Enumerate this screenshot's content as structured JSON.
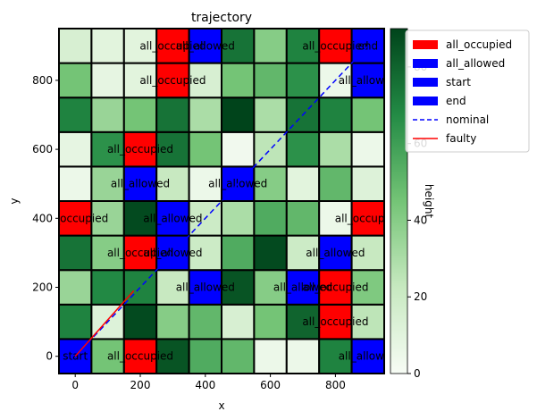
{
  "chart_data": {
    "type": "heatmap",
    "title": "trajectory",
    "xlabel": "x",
    "ylabel": "y",
    "colorbar_label": "height",
    "xlim": [
      -50,
      950
    ],
    "ylim": [
      -50,
      950
    ],
    "cell_size": 100,
    "x_ticks": [
      0,
      200,
      400,
      600,
      800
    ],
    "y_ticks": [
      0,
      200,
      400,
      600,
      800
    ],
    "colorbar_ticks": [
      0,
      20,
      40,
      60,
      80
    ],
    "colorbar_range": [
      0,
      90
    ],
    "grid": false,
    "legend_position": "upper right, outside plot",
    "colormap": "Greens",
    "heights": [
      [
        62,
        45,
        10,
        85,
        55,
        50,
        5,
        5,
        70,
        20
      ],
      [
        70,
        12,
        88,
        40,
        50,
        15,
        45,
        80,
        10,
        25
      ],
      [
        35,
        68,
        70,
        22,
        60,
        85,
        40,
        40,
        50,
        42
      ],
      [
        75,
        40,
        60,
        55,
        20,
        55,
        88,
        20,
        15,
        22
      ],
      [
        12,
        35,
        88,
        60,
        20,
        30,
        55,
        50,
        5,
        12
      ],
      [
        5,
        35,
        20,
        22,
        5,
        20,
        40,
        10,
        50,
        12
      ],
      [
        8,
        65,
        50,
        75,
        45,
        3,
        25,
        65,
        30,
        5
      ],
      [
        70,
        35,
        45,
        75,
        30,
        90,
        30,
        75,
        70,
        45
      ],
      [
        45,
        8,
        10,
        20,
        15,
        45,
        50,
        65,
        5,
        80
      ],
      [
        15,
        10,
        10,
        35,
        20,
        75,
        40,
        70,
        10,
        20
      ]
    ],
    "special_cells": [
      {
        "row": 0,
        "col": 0,
        "kind": "start",
        "label": "start"
      },
      {
        "row": 0,
        "col": 2,
        "kind": "all_occupied",
        "label": "all_occupied"
      },
      {
        "row": 0,
        "col": 9,
        "kind": "all_allowed",
        "label": "all_allowed"
      },
      {
        "row": 1,
        "col": 8,
        "kind": "all_occupied",
        "label": "all_occupied"
      },
      {
        "row": 2,
        "col": 4,
        "kind": "all_allowed",
        "label": "all_allowed"
      },
      {
        "row": 2,
        "col": 7,
        "kind": "all_allowed",
        "label": "all_allowed"
      },
      {
        "row": 2,
        "col": 8,
        "kind": "all_occupied",
        "label": "all_occupied"
      },
      {
        "row": 3,
        "col": 2,
        "kind": "all_occupied",
        "label": "all_occupied"
      },
      {
        "row": 3,
        "col": 3,
        "kind": "all_allowed",
        "label": "all_allowed"
      },
      {
        "row": 3,
        "col": 8,
        "kind": "all_allowed",
        "label": "all_allowed"
      },
      {
        "row": 4,
        "col": 0,
        "kind": "all_occupied",
        "label": "all_occupied"
      },
      {
        "row": 4,
        "col": 3,
        "kind": "all_allowed",
        "label": "all_allowed"
      },
      {
        "row": 4,
        "col": 9,
        "kind": "all_occupied",
        "label": "all_occupied"
      },
      {
        "row": 5,
        "col": 2,
        "kind": "all_allowed",
        "label": "all_allowed"
      },
      {
        "row": 5,
        "col": 5,
        "kind": "all_allowed",
        "label": "all_allowed"
      },
      {
        "row": 6,
        "col": 2,
        "kind": "all_occupied",
        "label": "all_occupied"
      },
      {
        "row": 8,
        "col": 3,
        "kind": "all_occupied",
        "label": "all_occupied"
      },
      {
        "row": 8,
        "col": 9,
        "kind": "all_allowed",
        "label": "all_allowed"
      },
      {
        "row": 9,
        "col": 3,
        "kind": "all_occupied",
        "label": "all_occupied"
      },
      {
        "row": 9,
        "col": 4,
        "kind": "all_allowed",
        "label": "all_allowed"
      },
      {
        "row": 9,
        "col": 8,
        "kind": "all_occupied",
        "label": "all_occupied"
      },
      {
        "row": 9,
        "col": 9,
        "kind": "end",
        "label": "end"
      }
    ],
    "special_colors": {
      "all_occupied": "#ff0000",
      "all_allowed": "#0000ff",
      "start": "#0000ff",
      "end": "#0000ff"
    },
    "lines": [
      {
        "name": "nominal",
        "color": "#0000ff",
        "style": "dashed",
        "points": [
          [
            0,
            0
          ],
          [
            900,
            900
          ]
        ]
      },
      {
        "name": "faulty",
        "color": "#ff0000",
        "style": "solid",
        "points": [
          [
            0,
            0
          ],
          [
            180,
            190
          ]
        ]
      }
    ],
    "legend": [
      {
        "label": "all_occupied",
        "kind": "patch",
        "color": "#ff0000"
      },
      {
        "label": "all_allowed",
        "kind": "patch",
        "color": "#0000ff"
      },
      {
        "label": "start",
        "kind": "patch",
        "color": "#0000ff"
      },
      {
        "label": "end",
        "kind": "patch",
        "color": "#0000ff"
      },
      {
        "label": "nominal",
        "kind": "dashed",
        "color": "#0000ff"
      },
      {
        "label": "faulty",
        "kind": "solid",
        "color": "#ff0000"
      }
    ]
  }
}
